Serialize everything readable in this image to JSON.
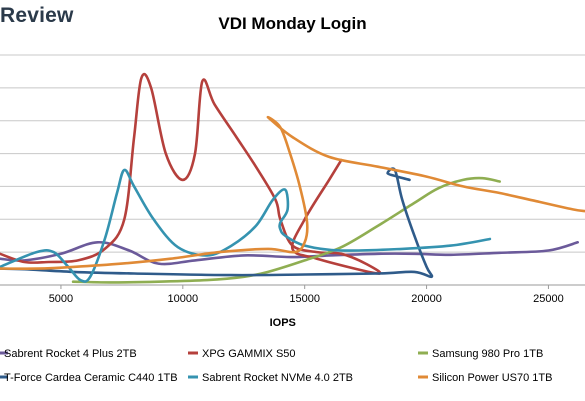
{
  "header": {
    "brand": "Review"
  },
  "chart_data": {
    "type": "line",
    "title": "VDI Monday Login",
    "xlabel": "IOPS",
    "ylabel": "",
    "xlim": [
      2500,
      26500
    ],
    "ylim": [
      0,
      7
    ],
    "x_ticks": [
      5000,
      10000,
      15000,
      20000,
      25000
    ],
    "x_tick_labels": [
      "5000",
      "10000",
      "15000",
      "20000",
      "25000"
    ],
    "y_gridlines": [
      0,
      1,
      2,
      3,
      4,
      5,
      6,
      7
    ],
    "grid": true,
    "legend_position": "bottom",
    "series": [
      {
        "name": "Sabrent Rocket 4 Plus 2TB",
        "color": "#6b5a9a",
        "points": [
          [
            2500,
            0.8
          ],
          [
            3500,
            0.75
          ],
          [
            5000,
            0.95
          ],
          [
            6500,
            1.3
          ],
          [
            7800,
            1.05
          ],
          [
            9000,
            0.65
          ],
          [
            10500,
            0.75
          ],
          [
            12500,
            0.9
          ],
          [
            14500,
            0.85
          ],
          [
            16000,
            0.9
          ],
          [
            18000,
            0.95
          ],
          [
            19500,
            0.95
          ],
          [
            21000,
            0.92
          ],
          [
            23000,
            0.98
          ],
          [
            25000,
            1.05
          ],
          [
            26200,
            1.3
          ]
        ]
      },
      {
        "name": "XPG GAMMIX S50",
        "color": "#b5403c",
        "points": [
          [
            2500,
            0.95
          ],
          [
            3500,
            0.7
          ],
          [
            4500,
            0.7
          ],
          [
            5700,
            0.75
          ],
          [
            6800,
            1.1
          ],
          [
            7600,
            2.0
          ],
          [
            8000,
            4.5
          ],
          [
            8300,
            6.3
          ],
          [
            8700,
            6.0
          ],
          [
            9300,
            4.0
          ],
          [
            10000,
            3.2
          ],
          [
            10500,
            4.0
          ],
          [
            10800,
            6.2
          ],
          [
            11300,
            5.5
          ],
          [
            12200,
            4.5
          ],
          [
            13000,
            3.6
          ],
          [
            13800,
            2.6
          ],
          [
            14000,
            2.0
          ],
          [
            14500,
            1.2
          ],
          [
            15500,
            1.0
          ],
          [
            16500,
            0.95
          ],
          [
            17500,
            0.65
          ],
          [
            18000,
            0.35
          ],
          [
            15500,
            0.8
          ],
          [
            14500,
            1.1
          ],
          [
            15000,
            2.0
          ],
          [
            16000,
            3.2
          ],
          [
            16500,
            3.8
          ]
        ]
      },
      {
        "name": "Samsung 980 Pro 1TB",
        "color": "#8fae52",
        "points": [
          [
            5500,
            0.1
          ],
          [
            7000,
            0.08
          ],
          [
            9000,
            0.1
          ],
          [
            11000,
            0.15
          ],
          [
            12500,
            0.25
          ],
          [
            13500,
            0.4
          ],
          [
            15000,
            0.75
          ],
          [
            16500,
            1.15
          ],
          [
            18000,
            1.8
          ],
          [
            19500,
            2.5
          ],
          [
            20500,
            2.95
          ],
          [
            21500,
            3.2
          ],
          [
            22300,
            3.25
          ],
          [
            23000,
            3.15
          ]
        ]
      },
      {
        "name": "T-Force Cardea Ceramic C440 1TB",
        "color": "#2f5b8a",
        "points": [
          [
            2500,
            0.5
          ],
          [
            3500,
            0.48
          ],
          [
            5500,
            0.4
          ],
          [
            8000,
            0.35
          ],
          [
            12000,
            0.3
          ],
          [
            15000,
            0.32
          ],
          [
            18000,
            0.35
          ],
          [
            19500,
            0.4
          ],
          [
            20200,
            0.25
          ],
          [
            20000,
            0.55
          ],
          [
            19500,
            1.5
          ],
          [
            19000,
            2.6
          ],
          [
            18700,
            3.5
          ],
          [
            18400,
            3.4
          ],
          [
            18800,
            3.3
          ],
          [
            19300,
            3.2
          ]
        ]
      },
      {
        "name": "Sabrent Rocket NVMe 4.0 2TB",
        "color": "#3593b0",
        "points": [
          [
            2500,
            0.55
          ],
          [
            4000,
            1.0
          ],
          [
            4700,
            1.0
          ],
          [
            5300,
            0.55
          ],
          [
            5800,
            0.15
          ],
          [
            6200,
            0.25
          ],
          [
            6800,
            1.4
          ],
          [
            7300,
            2.8
          ],
          [
            7600,
            3.5
          ],
          [
            8000,
            3.0
          ],
          [
            8800,
            2.0
          ],
          [
            9800,
            1.15
          ],
          [
            11000,
            0.9
          ],
          [
            12000,
            1.2
          ],
          [
            13000,
            1.8
          ],
          [
            13700,
            2.6
          ],
          [
            14200,
            2.9
          ],
          [
            14300,
            2.3
          ],
          [
            14000,
            1.9
          ],
          [
            14000,
            1.7
          ],
          [
            14200,
            1.5
          ],
          [
            15000,
            1.2
          ],
          [
            16500,
            1.05
          ],
          [
            19000,
            1.1
          ],
          [
            21000,
            1.2
          ],
          [
            22600,
            1.4
          ]
        ]
      },
      {
        "name": "Silicon Power US70 1TB",
        "color": "#e08a36",
        "points": [
          [
            2500,
            0.5
          ],
          [
            4000,
            0.5
          ],
          [
            5500,
            0.55
          ],
          [
            7500,
            0.65
          ],
          [
            9500,
            0.8
          ],
          [
            11500,
            1.0
          ],
          [
            13500,
            1.1
          ],
          [
            14600,
            1.0
          ],
          [
            15000,
            1.3
          ],
          [
            15100,
            1.9
          ],
          [
            14800,
            3.0
          ],
          [
            14400,
            4.0
          ],
          [
            14000,
            4.8
          ],
          [
            13500,
            5.1
          ],
          [
            14500,
            4.5
          ],
          [
            16000,
            3.9
          ],
          [
            18000,
            3.6
          ],
          [
            20000,
            3.3
          ],
          [
            21500,
            3.0
          ],
          [
            23000,
            2.8
          ],
          [
            24500,
            2.55
          ],
          [
            26000,
            2.3
          ],
          [
            26500,
            2.25
          ]
        ]
      }
    ]
  }
}
